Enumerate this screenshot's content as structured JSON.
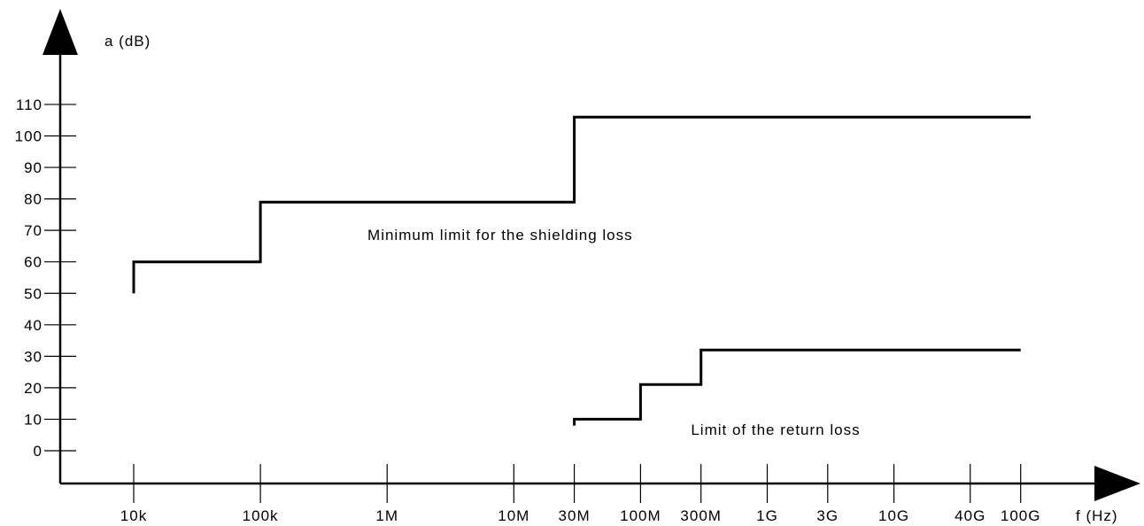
{
  "chart_data": {
    "type": "line",
    "title": "",
    "ylabel": "a (dB)",
    "xlabel": "f (Hz)",
    "x_scale": "log",
    "ylim": [
      0,
      110
    ],
    "y_ticks": [
      {
        "value": 0,
        "label": "0"
      },
      {
        "value": 10,
        "label": "10"
      },
      {
        "value": 20,
        "label": "20"
      },
      {
        "value": 30,
        "label": "30"
      },
      {
        "value": 40,
        "label": "40"
      },
      {
        "value": 50,
        "label": "50"
      },
      {
        "value": 60,
        "label": "60"
      },
      {
        "value": 70,
        "label": "70"
      },
      {
        "value": 80,
        "label": "80"
      },
      {
        "value": 90,
        "label": "90"
      },
      {
        "value": 100,
        "label": "100"
      },
      {
        "value": 110,
        "label": "110"
      }
    ],
    "x_ticks": [
      {
        "label": "10k",
        "value": 10000
      },
      {
        "label": "100k",
        "value": 100000
      },
      {
        "label": "1M",
        "value": 1000000
      },
      {
        "label": "10M",
        "value": 10000000
      },
      {
        "label": "30M",
        "value": 30000000
      },
      {
        "label": "100M",
        "value": 100000000
      },
      {
        "label": "300M",
        "value": 300000000
      },
      {
        "label": "1G",
        "value": 1000000000
      },
      {
        "label": "3G",
        "value": 3000000000
      },
      {
        "label": "10G",
        "value": 10000000000
      },
      {
        "label": "40G",
        "value": 40000000000
      },
      {
        "label": "100G",
        "value": 100000000000
      }
    ],
    "grid": false,
    "series": [
      {
        "name": "Minimum limit for the shielding loss",
        "points": [
          [
            10000,
            50
          ],
          [
            10000,
            60
          ],
          [
            100000,
            60
          ],
          [
            100000,
            79
          ],
          [
            30000000,
            79
          ],
          [
            30000000,
            106
          ],
          [
            120000000000,
            106
          ]
        ]
      },
      {
        "name": "Limit of the return loss",
        "points": [
          [
            30000000,
            8
          ],
          [
            30000000,
            10
          ],
          [
            100000000,
            10
          ],
          [
            100000000,
            21
          ],
          [
            300000000,
            21
          ],
          [
            300000000,
            32
          ],
          [
            100000000000,
            32
          ]
        ]
      }
    ],
    "annotations": [
      {
        "series": 0,
        "text": "Minimum limit for the shielding loss"
      },
      {
        "series": 1,
        "text": "Limit of the return loss"
      }
    ]
  }
}
